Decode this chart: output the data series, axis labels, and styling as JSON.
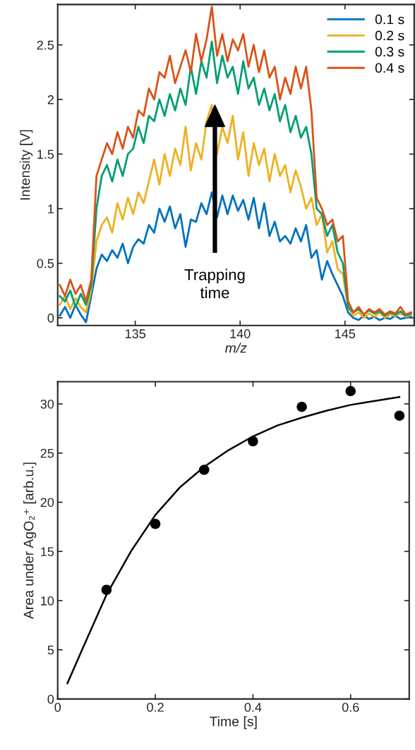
{
  "chart_data": [
    {
      "type": "line",
      "xlabel": "m/z",
      "ylabel": "Intensity [V]",
      "xlim": [
        131.3,
        148.3
      ],
      "ylim": [
        -0.07,
        2.87
      ],
      "xticks": [
        135,
        140,
        145
      ],
      "yticks": [
        0,
        0.5,
        1,
        1.5,
        2,
        2.5
      ],
      "legend": "top right",
      "grid": false,
      "marker": "none",
      "line_style": "solid",
      "annotations": [
        "Trapping\ntime"
      ],
      "x": [
        131.4,
        131.65,
        131.9,
        132.15,
        132.4,
        132.65,
        132.9,
        133.15,
        133.4,
        133.65,
        133.9,
        134.15,
        134.4,
        134.65,
        134.9,
        135.15,
        135.4,
        135.65,
        135.9,
        136.15,
        136.4,
        136.65,
        136.9,
        137.15,
        137.4,
        137.65,
        137.9,
        138.15,
        138.4,
        138.65,
        138.9,
        139.15,
        139.4,
        139.65,
        139.9,
        140.15,
        140.4,
        140.65,
        140.9,
        141.15,
        141.4,
        141.65,
        141.9,
        142.15,
        142.4,
        142.65,
        142.9,
        143.15,
        143.4,
        143.65,
        143.9,
        144.15,
        144.4,
        144.65,
        144.9,
        145.15,
        145.4,
        145.65,
        145.9,
        146.15,
        146.4,
        146.65,
        146.9,
        147.15,
        147.4,
        147.65,
        147.9,
        148.15
      ],
      "series": [
        {
          "name": "0.1 s",
          "color": "#0072bd",
          "values": [
            0.02,
            0.1,
            0.0,
            0.12,
            0.03,
            -0.04,
            0.2,
            0.45,
            0.58,
            0.52,
            0.62,
            0.55,
            0.68,
            0.5,
            0.65,
            0.72,
            0.68,
            0.85,
            0.78,
            1.0,
            0.88,
            1.02,
            0.82,
            0.95,
            0.65,
            0.9,
            0.88,
            1.05,
            0.95,
            1.15,
            0.92,
            1.12,
            0.95,
            1.12,
            0.98,
            1.08,
            0.9,
            1.1,
            0.82,
            1.05,
            0.75,
            0.88,
            0.7,
            0.75,
            0.68,
            0.82,
            0.7,
            0.85,
            0.55,
            0.62,
            0.35,
            0.52,
            0.4,
            0.3,
            0.2,
            0.05,
            0.0,
            -0.02,
            0.02,
            -0.01,
            0.01,
            -0.02,
            0.0,
            -0.01,
            0.02,
            -0.01,
            0.0,
            0.01
          ]
        },
        {
          "name": "0.2 s",
          "color": "#edb120",
          "values": [
            0.12,
            0.2,
            0.08,
            0.18,
            0.1,
            0.05,
            0.25,
            0.7,
            0.85,
            0.92,
            0.78,
            1.05,
            0.9,
            1.1,
            0.95,
            1.15,
            1.05,
            1.25,
            1.45,
            1.22,
            1.5,
            1.3,
            1.55,
            1.4,
            1.75,
            1.35,
            1.6,
            1.45,
            1.8,
            1.95,
            1.5,
            1.75,
            1.6,
            1.85,
            1.45,
            1.7,
            1.3,
            1.6,
            1.4,
            1.55,
            1.25,
            1.5,
            1.3,
            1.4,
            1.15,
            1.35,
            1.2,
            1.0,
            1.1,
            0.85,
            0.95,
            0.6,
            0.7,
            0.45,
            0.4,
            0.1,
            0.02,
            0.05,
            0.0,
            0.04,
            0.01,
            0.05,
            0.0,
            0.03,
            0.02,
            0.04,
            0.01,
            0.03
          ]
        },
        {
          "name": "0.3 s",
          "color": "#009e73",
          "values": [
            0.2,
            0.15,
            0.25,
            0.1,
            0.22,
            0.12,
            0.3,
            1.0,
            1.3,
            1.4,
            1.25,
            1.45,
            1.3,
            1.5,
            1.55,
            1.75,
            1.6,
            1.85,
            1.8,
            2.0,
            1.85,
            2.05,
            1.9,
            2.1,
            1.95,
            2.3,
            2.05,
            2.35,
            2.2,
            2.53,
            2.15,
            2.4,
            2.2,
            2.3,
            2.05,
            2.35,
            2.1,
            2.2,
            1.95,
            2.1,
            1.9,
            2.05,
            1.8,
            1.95,
            1.7,
            1.85,
            1.65,
            1.75,
            1.5,
            1.0,
            0.95,
            0.75,
            0.85,
            0.6,
            0.5,
            0.1,
            0.05,
            0.08,
            0.03,
            0.07,
            0.04,
            0.06,
            0.02,
            0.05,
            0.03,
            0.06,
            0.02,
            0.04
          ]
        },
        {
          "name": "0.4 s",
          "color": "#d95319",
          "values": [
            0.3,
            0.2,
            0.35,
            0.22,
            0.3,
            0.15,
            0.35,
            1.3,
            1.45,
            1.6,
            1.5,
            1.7,
            1.55,
            1.75,
            1.65,
            1.9,
            1.85,
            2.1,
            2.0,
            2.25,
            2.2,
            2.4,
            2.15,
            2.3,
            2.45,
            2.25,
            2.6,
            2.35,
            2.55,
            2.85,
            2.4,
            2.6,
            2.35,
            2.55,
            2.45,
            2.6,
            2.3,
            2.5,
            2.25,
            2.45,
            2.2,
            2.3,
            2.0,
            2.2,
            2.05,
            2.3,
            2.1,
            2.3,
            1.9,
            1.1,
            1.0,
            0.85,
            0.9,
            0.7,
            0.75,
            0.15,
            0.05,
            0.1,
            0.03,
            0.08,
            0.05,
            0.08,
            0.03,
            0.06,
            0.04,
            0.1,
            0.03,
            0.05
          ]
        }
      ]
    },
    {
      "type": "scatter",
      "xlabel": "Time [s]",
      "ylabel": "Area under AgO₂⁺ [arb.u.]",
      "xlim": [
        0,
        0.72
      ],
      "ylim": [
        0,
        32.25
      ],
      "xticks": [
        0,
        0.2,
        0.4,
        0.6
      ],
      "yticks": [
        0,
        5,
        10,
        15,
        20,
        25,
        30
      ],
      "grid": false,
      "legend": false,
      "marker": "circle",
      "series": [
        {
          "type": "scatter",
          "color": "#000000",
          "x": [
            0.1,
            0.2,
            0.3,
            0.4,
            0.5,
            0.6,
            0.7
          ],
          "values": [
            11.1,
            17.8,
            23.3,
            26.2,
            29.7,
            31.3,
            28.8
          ]
        },
        {
          "type": "line",
          "color": "#000000",
          "line_style": "solid",
          "marker": "none",
          "x": [
            0.02,
            0.05,
            0.1,
            0.15,
            0.2,
            0.25,
            0.3,
            0.35,
            0.4,
            0.45,
            0.5,
            0.55,
            0.6,
            0.65,
            0.7
          ],
          "values": [
            1.6,
            5.0,
            10.6,
            15.0,
            18.7,
            21.5,
            23.6,
            25.3,
            26.7,
            27.8,
            28.6,
            29.3,
            29.9,
            30.3,
            30.7
          ]
        }
      ]
    }
  ]
}
